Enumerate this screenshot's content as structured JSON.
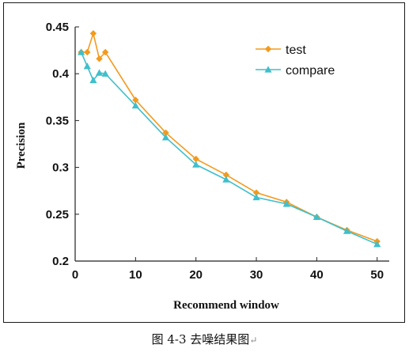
{
  "chart_data": {
    "type": "line",
    "title": "",
    "xlabel": "Recommend window",
    "ylabel": "Precision",
    "xlim": [
      0,
      52
    ],
    "ylim": [
      0.2,
      0.45
    ],
    "xticks": [
      0,
      10,
      20,
      30,
      40,
      50
    ],
    "xtick_labels": [
      "0",
      "10",
      "20",
      "30",
      "40",
      "50"
    ],
    "yticks": [
      0.2,
      0.25,
      0.3,
      0.35,
      0.4,
      0.45
    ],
    "ytick_labels": [
      "0.2",
      "0.25",
      "0.3",
      "0.35",
      "0.4",
      "0.45"
    ],
    "grid": false,
    "legend_position": "top-right",
    "series": [
      {
        "name": "test",
        "color": "#f39a1d",
        "marker": "diamond",
        "x": [
          1,
          2,
          3,
          4,
          5,
          10,
          15,
          20,
          25,
          30,
          35,
          40,
          45,
          50
        ],
        "y": [
          0.423,
          0.423,
          0.443,
          0.416,
          0.423,
          0.372,
          0.337,
          0.309,
          0.292,
          0.273,
          0.263,
          0.247,
          0.233,
          0.221
        ]
      },
      {
        "name": "compare",
        "color": "#3fbfcc",
        "marker": "triangle",
        "x": [
          1,
          2,
          3,
          4,
          5,
          10,
          15,
          20,
          25,
          30,
          35,
          40,
          45,
          50
        ],
        "y": [
          0.423,
          0.408,
          0.393,
          0.401,
          0.4,
          0.366,
          0.332,
          0.303,
          0.287,
          0.268,
          0.261,
          0.247,
          0.232,
          0.218
        ]
      }
    ]
  },
  "caption": {
    "text": "图 4-3 去噪结果图",
    "return_mark": "↵"
  }
}
